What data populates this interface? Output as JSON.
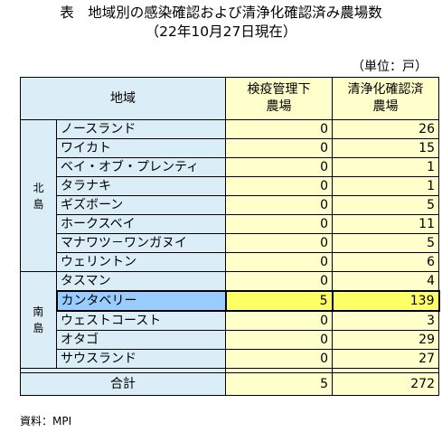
{
  "title": {
    "line1": "表　地域別の感染確認および清浄化確認済み農場数",
    "line2": "（22年10月27日現在）"
  },
  "unit": "（単位：戸）",
  "table": {
    "headers": {
      "region": "地域",
      "quarantine": [
        "検疫管理下",
        "農場"
      ],
      "cleared": [
        "清浄化確認済",
        "農場"
      ]
    },
    "north": {
      "label": [
        "北",
        "島"
      ],
      "rows": [
        {
          "name": "ノースランド",
          "quarantine": "0",
          "cleared": "26"
        },
        {
          "name": "ワイカト",
          "quarantine": "0",
          "cleared": "15"
        },
        {
          "name": "ベイ・オブ・プレンティ",
          "quarantine": "0",
          "cleared": "1"
        },
        {
          "name": "タラナキ",
          "quarantine": "0",
          "cleared": "1"
        },
        {
          "name": "ギズボーン",
          "quarantine": "0",
          "cleared": "5"
        },
        {
          "name": "ホークスベイ",
          "quarantine": "0",
          "cleared": "11"
        },
        {
          "name": "マナワツ－ワンガヌイ",
          "quarantine": "0",
          "cleared": "5"
        },
        {
          "name": "ウェリントン",
          "quarantine": "0",
          "cleared": "6"
        }
      ]
    },
    "south": {
      "label": [
        "南",
        "島"
      ],
      "rows": [
        {
          "name": "タスマン",
          "quarantine": "0",
          "cleared": "4"
        },
        {
          "name": "カンタベリー",
          "quarantine": "5",
          "cleared": "139"
        },
        {
          "name": "ウェストコースト",
          "quarantine": "0",
          "cleared": "3"
        },
        {
          "name": "オタゴ",
          "quarantine": "0",
          "cleared": "29"
        },
        {
          "name": "サウスランド",
          "quarantine": "0",
          "cleared": "27"
        }
      ]
    },
    "total": {
      "label": "合計",
      "quarantine": "5",
      "cleared": "272"
    }
  },
  "source": "資料：MPI"
}
